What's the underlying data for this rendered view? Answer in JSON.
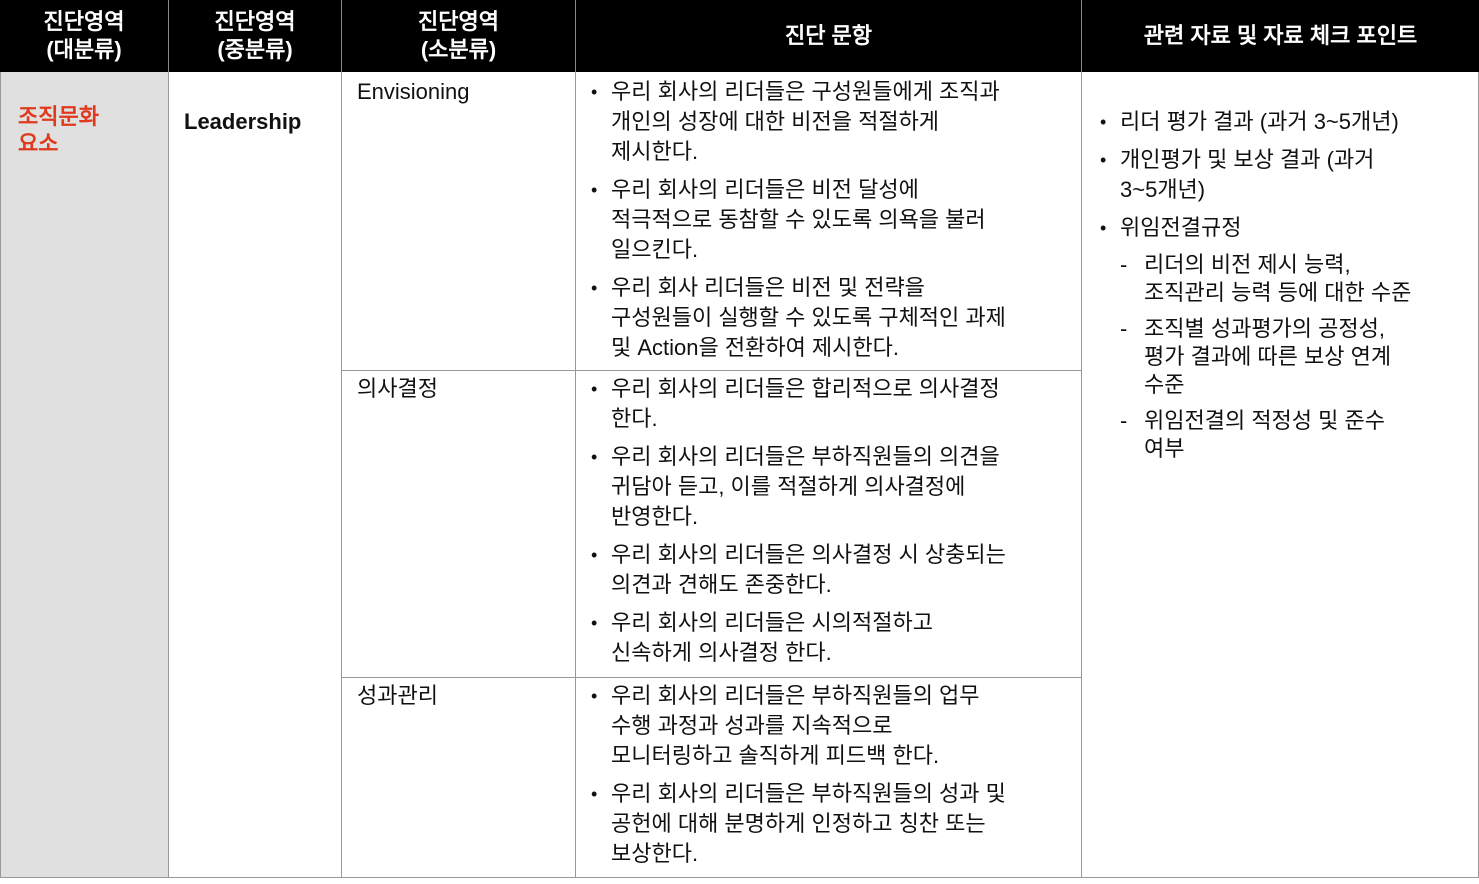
{
  "headers": [
    "진단영역\n(대분류)",
    "진단영역\n(중분류)",
    "진단영역\n(소분류)",
    "진단 문항",
    "관련 자료 및 자료 체크 포인트"
  ],
  "colors": {
    "major_text": "#e03a1e",
    "major_bg": "#e0e0e0",
    "header_bg": "#000000"
  },
  "major": "조직문화\n요소",
  "middle": "Leadership",
  "rows": [
    {
      "minor": "Envisioning",
      "items": [
        "우리 회사의 리더들은 구성원들에게 조직과\n개인의 성장에 대한 비전을 적절하게\n제시한다.",
        "우리 회사의 리더들은 비전 달성에\n적극적으로 동참할 수 있도록 의욕을 불러\n일으킨다.",
        "우리 회사 리더들은 비전 및 전략을\n구성원들이 실행할 수 있도록 구체적인 과제\n및 Action을 전환하여 제시한다."
      ]
    },
    {
      "minor": "의사결정",
      "items": [
        "우리 회사의 리더들은 합리적으로 의사결정\n한다.",
        "우리 회사의 리더들은 부하직원들의 의견을\n귀담아 듣고, 이를 적절하게 의사결정에\n반영한다.",
        "우리 회사의 리더들은 의사결정 시 상충되는\n의견과 견해도 존중한다.",
        "우리 회사의 리더들은 시의적절하고\n신속하게 의사결정 한다."
      ]
    },
    {
      "minor": "성과관리",
      "items": [
        "우리 회사의 리더들은 부하직원들의 업무\n수행 과정과 성과를 지속적으로\n모니터링하고 솔직하게 피드백 한다.",
        "우리 회사의 리더들은 부하직원들의 성과 및\n공헌에 대해 분명하게 인정하고 칭찬 또는\n보상한다."
      ]
    }
  ],
  "references": [
    {
      "level": 1,
      "text": "리더 평가 결과 (과거 3~5개년)"
    },
    {
      "level": 1,
      "text": "개인평가 및 보상 결과 (과거\n3~5개년)"
    },
    {
      "level": 1,
      "text": "위임전결규정"
    },
    {
      "level": 2,
      "text": "리더의 비전 제시 능력,\n조직관리 능력 등에 대한 수준"
    },
    {
      "level": 2,
      "text": "조직별 성과평가의 공정성,\n평가 결과에 따른 보상 연계\n수준"
    },
    {
      "level": 2,
      "text": "위임전결의 적정성 및 준수\n여부"
    }
  ]
}
